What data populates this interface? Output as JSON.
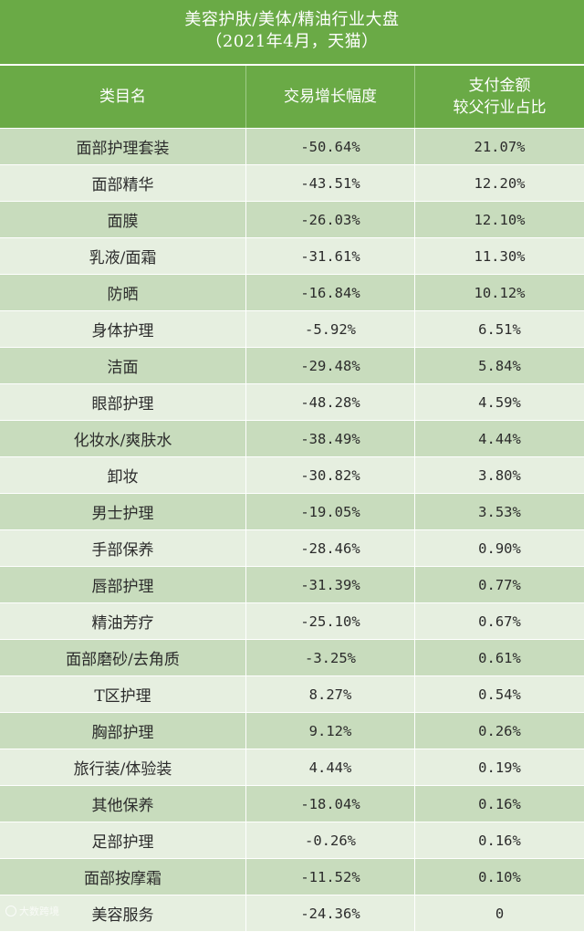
{
  "title": {
    "line1": "美容护肤/美体/精油行业大盘",
    "line2": "（2021年4月，天猫）"
  },
  "columns": {
    "category": "类目名",
    "growth": "交易增长幅度",
    "share_line1": "支付金额",
    "share_line2": "较父行业占比"
  },
  "rows": [
    {
      "category": "面部护理套装",
      "growth": "-50.64%",
      "share": "21.07%"
    },
    {
      "category": "面部精华",
      "growth": "-43.51%",
      "share": "12.20%"
    },
    {
      "category": "面膜",
      "growth": "-26.03%",
      "share": "12.10%"
    },
    {
      "category": "乳液/面霜",
      "growth": "-31.61%",
      "share": "11.30%"
    },
    {
      "category": "防晒",
      "growth": "-16.84%",
      "share": "10.12%"
    },
    {
      "category": "身体护理",
      "growth": "-5.92%",
      "share": "6.51%"
    },
    {
      "category": "洁面",
      "growth": "-29.48%",
      "share": "5.84%"
    },
    {
      "category": "眼部护理",
      "growth": "-48.28%",
      "share": "4.59%"
    },
    {
      "category": "化妆水/爽肤水",
      "growth": "-38.49%",
      "share": "4.44%"
    },
    {
      "category": "卸妆",
      "growth": "-30.82%",
      "share": "3.80%"
    },
    {
      "category": "男士护理",
      "growth": "-19.05%",
      "share": "3.53%"
    },
    {
      "category": "手部保养",
      "growth": "-28.46%",
      "share": "0.90%"
    },
    {
      "category": "唇部护理",
      "growth": "-31.39%",
      "share": "0.77%"
    },
    {
      "category": "精油芳疗",
      "growth": "-25.10%",
      "share": "0.67%"
    },
    {
      "category": "面部磨砂/去角质",
      "growth": "-3.25%",
      "share": "0.61%"
    },
    {
      "category": "T区护理",
      "growth": "8.27%",
      "share": "0.54%"
    },
    {
      "category": "胸部护理",
      "growth": "9.12%",
      "share": "0.26%"
    },
    {
      "category": "旅行装/体验装",
      "growth": "4.44%",
      "share": "0.19%"
    },
    {
      "category": "其他保养",
      "growth": "-18.04%",
      "share": "0.16%"
    },
    {
      "category": "足部护理",
      "growth": "-0.26%",
      "share": "0.16%"
    },
    {
      "category": "面部按摩霜",
      "growth": "-11.52%",
      "share": "0.10%"
    },
    {
      "category": "美容服务",
      "growth": "-24.36%",
      "share": "0"
    }
  ],
  "watermark": "大数跨境",
  "colors": {
    "header_green": "#6aaa46",
    "row_dark": "#c8dcbd",
    "row_light": "#e6efe0"
  }
}
